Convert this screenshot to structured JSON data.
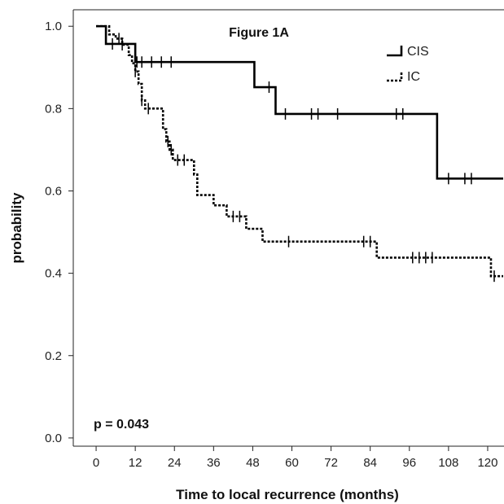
{
  "chart_data": {
    "type": "line",
    "title": "Figure 1A",
    "xlabel": "Time to local recurrence (months)",
    "ylabel": "probability",
    "xlim": [
      -7,
      125
    ],
    "ylim": [
      -0.02,
      1.04
    ],
    "xticks": [
      0,
      12,
      24,
      36,
      48,
      60,
      72,
      84,
      96,
      108,
      120
    ],
    "yticks": [
      0.0,
      0.2,
      0.4,
      0.6,
      0.8,
      1.0
    ],
    "ytick_labels": [
      "0.0",
      "0.2",
      "0.4",
      "0.6",
      "0.8",
      "1.0"
    ],
    "annotation": "p = 0.043",
    "legend_position": "top-right",
    "grid": false,
    "series": [
      {
        "name": "CIS",
        "style": "solid",
        "color": "#000000",
        "steps": [
          [
            0,
            1.0
          ],
          [
            3,
            0.957
          ],
          [
            10,
            0.957
          ],
          [
            12,
            0.913
          ],
          [
            48,
            0.913
          ],
          [
            48.5,
            0.852
          ],
          [
            54,
            0.852
          ],
          [
            55,
            0.787
          ],
          [
            103,
            0.787
          ],
          [
            104.5,
            0.63
          ],
          [
            126,
            0.63
          ]
        ],
        "censored": [
          [
            5,
            0.957
          ],
          [
            12.5,
            0.913
          ],
          [
            14,
            0.913
          ],
          [
            17,
            0.913
          ],
          [
            20,
            0.913
          ],
          [
            23,
            0.913
          ],
          [
            53,
            0.852
          ],
          [
            58,
            0.787
          ],
          [
            66,
            0.787
          ],
          [
            68,
            0.787
          ],
          [
            74,
            0.787
          ],
          [
            92,
            0.787
          ],
          [
            94,
            0.787
          ],
          [
            108,
            0.63
          ],
          [
            113,
            0.63
          ],
          [
            115,
            0.63
          ]
        ]
      },
      {
        "name": "IC",
        "style": "dotted",
        "color": "#000000",
        "steps": [
          [
            0,
            1.0
          ],
          [
            4,
            0.98
          ],
          [
            6,
            0.97
          ],
          [
            8,
            0.955
          ],
          [
            10,
            0.93
          ],
          [
            11,
            0.91
          ],
          [
            12,
            0.89
          ],
          [
            13,
            0.86
          ],
          [
            14,
            0.82
          ],
          [
            15,
            0.8
          ],
          [
            20,
            0.8
          ],
          [
            20.5,
            0.75
          ],
          [
            21.5,
            0.72
          ],
          [
            22.5,
            0.7
          ],
          [
            23.5,
            0.675
          ],
          [
            29,
            0.675
          ],
          [
            30,
            0.64
          ],
          [
            31,
            0.59
          ],
          [
            35,
            0.59
          ],
          [
            36,
            0.565
          ],
          [
            39,
            0.565
          ],
          [
            40,
            0.538
          ],
          [
            45,
            0.538
          ],
          [
            46,
            0.508
          ],
          [
            50,
            0.508
          ],
          [
            51,
            0.477
          ],
          [
            85,
            0.477
          ],
          [
            86,
            0.438
          ],
          [
            120,
            0.438
          ],
          [
            121,
            0.393
          ],
          [
            126,
            0.393
          ]
        ],
        "censored": [
          [
            7,
            0.97
          ],
          [
            8,
            0.955
          ],
          [
            12,
            0.89
          ],
          [
            14,
            0.82
          ],
          [
            16,
            0.8
          ],
          [
            22,
            0.72
          ],
          [
            23,
            0.7
          ],
          [
            25,
            0.675
          ],
          [
            27,
            0.675
          ],
          [
            42,
            0.538
          ],
          [
            44,
            0.538
          ],
          [
            59,
            0.477
          ],
          [
            82,
            0.477
          ],
          [
            84,
            0.477
          ],
          [
            97,
            0.438
          ],
          [
            99,
            0.438
          ],
          [
            101,
            0.438
          ],
          [
            103,
            0.438
          ],
          [
            122,
            0.393
          ]
        ]
      }
    ]
  }
}
